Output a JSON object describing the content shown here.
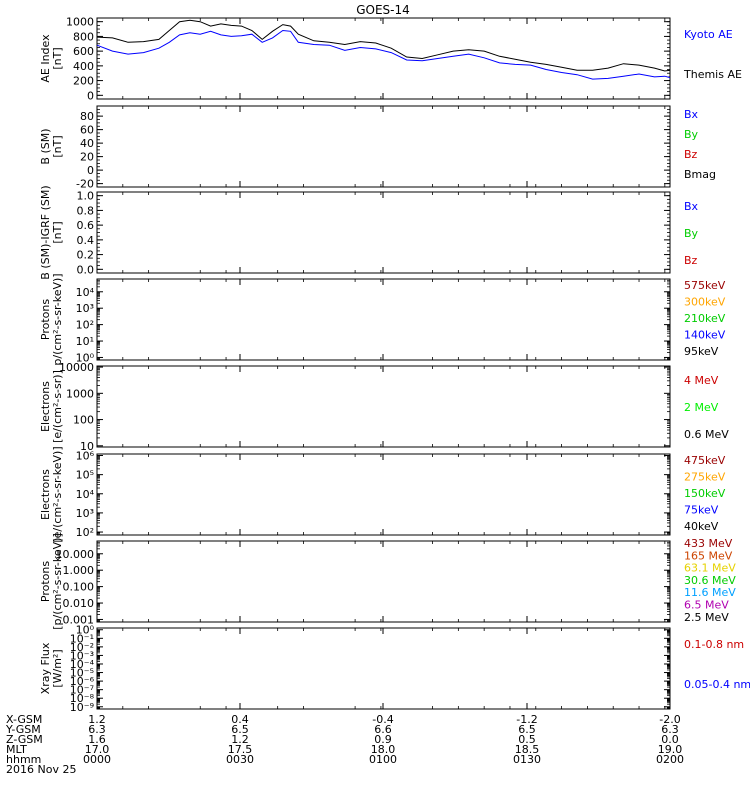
{
  "title": "GOES-14",
  "colors": {
    "black": "#000000",
    "blue": "#0000ff",
    "green": "#00cc00",
    "red": "#cc0000",
    "darkred": "#990000",
    "orange": "#ffa500",
    "yellow": "#e6d200",
    "cyan": "#00a0ff",
    "purple": "#b000b0",
    "brightgreen": "#00ee00"
  },
  "panels": [
    {
      "ylabel": [
        "AE Index",
        "[nT]"
      ],
      "scale": "linear",
      "ylim": [
        -50,
        1050
      ],
      "ticks": [
        {
          "v": 0,
          "label": "0"
        },
        {
          "v": 200,
          "label": "200"
        },
        {
          "v": 400,
          "label": "400"
        },
        {
          "v": 600,
          "label": "600"
        },
        {
          "v": 800,
          "label": "800"
        },
        {
          "v": 1000,
          "label": "1000"
        }
      ],
      "legend": [
        {
          "text": "Kyoto AE",
          "color": "#0000ff"
        },
        {
          "text": "Themis AE",
          "color": "#000000"
        }
      ]
    },
    {
      "ylabel": [
        "B (SM)",
        "[nT]"
      ],
      "scale": "linear",
      "ylim": [
        -25,
        95
      ],
      "ticks": [
        {
          "v": -20,
          "label": "-20"
        },
        {
          "v": 0,
          "label": "0"
        },
        {
          "v": 20,
          "label": "20"
        },
        {
          "v": 40,
          "label": "40"
        },
        {
          "v": 60,
          "label": "60"
        },
        {
          "v": 80,
          "label": "80"
        }
      ],
      "legend": [
        {
          "text": "Bx",
          "color": "#0000ff"
        },
        {
          "text": "By",
          "color": "#00cc00"
        },
        {
          "text": "Bz",
          "color": "#cc0000"
        },
        {
          "text": "Bmag",
          "color": "#000000"
        }
      ]
    },
    {
      "ylabel": [
        "B (SM)-IGRF (SM)",
        "[nT]"
      ],
      "scale": "linear",
      "ylim": [
        -0.05,
        1.05
      ],
      "ticks": [
        {
          "v": 0,
          "label": "0.0"
        },
        {
          "v": 0.2,
          "label": "0.2"
        },
        {
          "v": 0.4,
          "label": "0.4"
        },
        {
          "v": 0.6,
          "label": "0.6"
        },
        {
          "v": 0.8,
          "label": "0.8"
        },
        {
          "v": 1.0,
          "label": "1.0"
        }
      ],
      "legend": [
        {
          "text": "Bx",
          "color": "#0000ff"
        },
        {
          "text": "By",
          "color": "#00cc00"
        },
        {
          "text": "Bz",
          "color": "#cc0000"
        }
      ]
    },
    {
      "ylabel": [
        "Protons",
        "p/(cm²-s-sr-keV)]"
      ],
      "scale": "log",
      "ylim": [
        0.7,
        60000
      ],
      "ticks": [
        {
          "v": 1,
          "label": "10⁰"
        },
        {
          "v": 10,
          "label": "10¹"
        },
        {
          "v": 100,
          "label": "10²"
        },
        {
          "v": 1000,
          "label": "10³"
        },
        {
          "v": 10000,
          "label": "10⁴"
        }
      ],
      "legend": [
        {
          "text": "575keV",
          "color": "#990000"
        },
        {
          "text": "300keV",
          "color": "#ffa500"
        },
        {
          "text": "210keV",
          "color": "#00cc00"
        },
        {
          "text": "140keV",
          "color": "#0000ff"
        },
        {
          "text": "95keV",
          "color": "#000000"
        }
      ]
    },
    {
      "ylabel": [
        "Electrons",
        "[e/(cm²-s-sr)]"
      ],
      "scale": "log",
      "ylim": [
        9,
        11000
      ],
      "ticks": [
        {
          "v": 10,
          "label": "10"
        },
        {
          "v": 100,
          "label": "100"
        },
        {
          "v": 1000,
          "label": "1000"
        },
        {
          "v": 10000,
          "label": "10000"
        }
      ],
      "legend": [
        {
          "text": "4 MeV",
          "color": "#cc0000"
        },
        {
          "text": "2 MeV",
          "color": "#00ee00"
        },
        {
          "text": "0.6 MeV",
          "color": "#000000"
        }
      ]
    },
    {
      "ylabel": [
        "Electrons",
        "[e/(cm²-s-sr-keV)]"
      ],
      "scale": "log",
      "ylim": [
        70,
        1200000
      ],
      "ticks": [
        {
          "v": 100,
          "label": "10²"
        },
        {
          "v": 1000,
          "label": "10³"
        },
        {
          "v": 10000,
          "label": "10⁴"
        },
        {
          "v": 100000,
          "label": "10⁵"
        },
        {
          "v": 1000000,
          "label": "10⁶"
        }
      ],
      "legend": [
        {
          "text": "475keV",
          "color": "#990000"
        },
        {
          "text": "275keV",
          "color": "#ffa500"
        },
        {
          "text": "150keV",
          "color": "#00cc00"
        },
        {
          "text": "75keV",
          "color": "#0000ff"
        },
        {
          "text": "40keV",
          "color": "#000000"
        }
      ]
    },
    {
      "ylabel": [
        "Protons",
        "[p/(cm²-s-sr-keV)]"
      ],
      "scale": "log",
      "ylim": [
        0.0007,
        60
      ],
      "ticks": [
        {
          "v": 0.001,
          "label": "0.001"
        },
        {
          "v": 0.01,
          "label": "0.010"
        },
        {
          "v": 0.1,
          "label": "0.100"
        },
        {
          "v": 1,
          "label": "1.000"
        },
        {
          "v": 10,
          "label": "10.000"
        }
      ],
      "legend": [
        {
          "text": "433 MeV",
          "color": "#990000"
        },
        {
          "text": "165 MeV",
          "color": "#cc4400"
        },
        {
          "text": "63.1 MeV",
          "color": "#e6d200"
        },
        {
          "text": "30.6 MeV",
          "color": "#00cc00"
        },
        {
          "text": "11.6 MeV",
          "color": "#00a0ff"
        },
        {
          "text": "6.5 MeV",
          "color": "#b000b0"
        },
        {
          "text": "2.5 MeV",
          "color": "#000000"
        }
      ]
    },
    {
      "ylabel": [
        "Xray Flux",
        "[W/m²]"
      ],
      "scale": "log",
      "ylim": [
        5.5e-10,
        1.6
      ],
      "ticks": [
        {
          "v": 1e-09,
          "label": "10⁻⁹"
        },
        {
          "v": 1e-08,
          "label": "10⁻⁸"
        },
        {
          "v": 1e-07,
          "label": "10⁻⁷"
        },
        {
          "v": 1e-06,
          "label": "10⁻⁶"
        },
        {
          "v": 1e-05,
          "label": "10⁻⁵"
        },
        {
          "v": 0.0001,
          "label": "10⁻⁴"
        },
        {
          "v": 0.001,
          "label": "10⁻³"
        },
        {
          "v": 0.01,
          "label": "10⁻²"
        },
        {
          "v": 0.1,
          "label": "10⁻¹"
        },
        {
          "v": 1,
          "label": "10⁰"
        }
      ],
      "legend": [
        {
          "text": "0.1-0.8 nm",
          "color": "#cc0000"
        },
        {
          "text": "0.05-0.4 nm",
          "color": "#0000ff"
        }
      ]
    }
  ],
  "x_axis": {
    "row_labels": [
      "X-GSM",
      "Y-GSM",
      "Z-GSM",
      "MLT",
      "hhmm",
      "2016 Nov 25"
    ],
    "columns": [
      {
        "values": [
          "1.2",
          "6.3",
          "1.6",
          "17.0",
          "0000"
        ]
      },
      {
        "values": [
          "0.4",
          "6.5",
          "1.2",
          "17.5",
          "0030"
        ]
      },
      {
        "values": [
          "-0.4",
          "6.6",
          "0.9",
          "18.0",
          "0100"
        ]
      },
      {
        "values": [
          "-1.2",
          "6.5",
          "0.5",
          "18.5",
          "0130"
        ]
      },
      {
        "values": [
          "-2.0",
          "6.3",
          "0.0",
          "19.0",
          "0200"
        ]
      }
    ]
  },
  "chart_data": {
    "type": "line",
    "title": "GOES-14",
    "x_unit_label": "hhmm",
    "x": [
      "0000",
      "0030",
      "0100",
      "0130",
      "0200"
    ],
    "series": [
      {
        "name": "Kyoto AE",
        "color": "#0000ff",
        "points": [
          [
            0,
            680
          ],
          [
            6,
            600
          ],
          [
            12,
            560
          ],
          [
            18,
            580
          ],
          [
            24,
            640
          ],
          [
            28,
            720
          ],
          [
            32,
            820
          ],
          [
            36,
            850
          ],
          [
            40,
            830
          ],
          [
            44,
            870
          ],
          [
            48,
            820
          ],
          [
            52,
            800
          ],
          [
            56,
            810
          ],
          [
            60,
            830
          ],
          [
            64,
            720
          ],
          [
            68,
            780
          ],
          [
            72,
            880
          ],
          [
            75,
            870
          ],
          [
            78,
            720
          ],
          [
            84,
            690
          ],
          [
            90,
            680
          ],
          [
            96,
            610
          ],
          [
            102,
            650
          ],
          [
            108,
            630
          ],
          [
            114,
            580
          ],
          [
            120,
            480
          ],
          [
            126,
            470
          ],
          [
            132,
            500
          ],
          [
            138,
            530
          ],
          [
            144,
            560
          ],
          [
            150,
            510
          ],
          [
            156,
            440
          ],
          [
            162,
            420
          ],
          [
            168,
            410
          ],
          [
            174,
            350
          ],
          [
            180,
            310
          ],
          [
            186,
            280
          ],
          [
            192,
            220
          ],
          [
            198,
            230
          ],
          [
            204,
            260
          ],
          [
            210,
            290
          ],
          [
            216,
            250
          ],
          [
            220,
            260
          ],
          [
            222,
            240
          ]
        ]
      },
      {
        "name": "Themis AE",
        "color": "#000000",
        "points": [
          [
            0,
            790
          ],
          [
            6,
            780
          ],
          [
            12,
            720
          ],
          [
            18,
            730
          ],
          [
            24,
            760
          ],
          [
            28,
            880
          ],
          [
            32,
            1000
          ],
          [
            36,
            1020
          ],
          [
            40,
            1000
          ],
          [
            44,
            940
          ],
          [
            48,
            970
          ],
          [
            52,
            950
          ],
          [
            56,
            940
          ],
          [
            60,
            880
          ],
          [
            64,
            760
          ],
          [
            68,
            870
          ],
          [
            72,
            960
          ],
          [
            75,
            940
          ],
          [
            78,
            830
          ],
          [
            84,
            740
          ],
          [
            90,
            720
          ],
          [
            96,
            690
          ],
          [
            102,
            730
          ],
          [
            108,
            710
          ],
          [
            114,
            640
          ],
          [
            120,
            520
          ],
          [
            126,
            500
          ],
          [
            132,
            550
          ],
          [
            138,
            600
          ],
          [
            144,
            620
          ],
          [
            150,
            600
          ],
          [
            156,
            530
          ],
          [
            162,
            490
          ],
          [
            168,
            450
          ],
          [
            174,
            420
          ],
          [
            180,
            380
          ],
          [
            186,
            340
          ],
          [
            192,
            340
          ],
          [
            198,
            370
          ],
          [
            204,
            430
          ],
          [
            210,
            410
          ],
          [
            216,
            370
          ],
          [
            220,
            330
          ],
          [
            222,
            340
          ]
        ]
      }
    ]
  }
}
